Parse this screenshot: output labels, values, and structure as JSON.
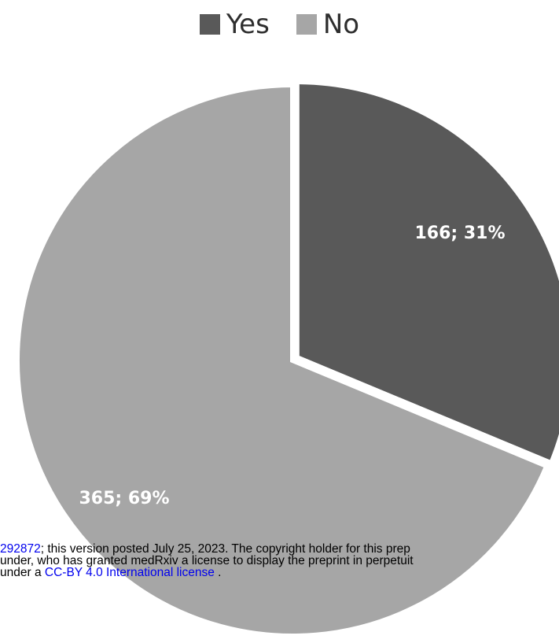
{
  "chart_data": {
    "type": "pie",
    "title": "",
    "categories": [
      "Yes",
      "No"
    ],
    "values": [
      166,
      365
    ],
    "percentages": [
      31,
      69
    ],
    "labels": [
      "166; 31%",
      "365; 69%"
    ],
    "colors": [
      "#595959",
      "#a6a6a6"
    ],
    "legend_position": "top-center"
  },
  "footer": {
    "line1_link": "292872",
    "line1_text": "; this version posted July 25, 2023. The copyright holder for this prep",
    "line2_text": "under, who has granted medRxiv a license to display the preprint in perpetuit",
    "line3_prefix": "under a ",
    "line3_link": "CC-BY 4.0 International license",
    "line3_suffix": " ."
  }
}
